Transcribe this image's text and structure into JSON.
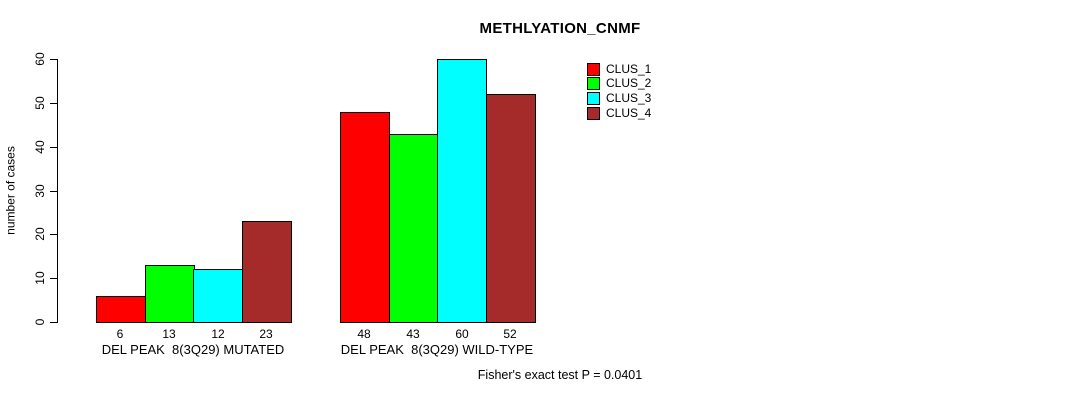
{
  "chart_data": {
    "type": "bar",
    "title": "METHLYATION_CNMF",
    "xlabel": "",
    "ylabel": "number of cases",
    "ylim": [
      0,
      60
    ],
    "yticks": [
      0,
      10,
      20,
      30,
      40,
      50,
      60
    ],
    "grid": false,
    "legend_position": "top-right-inside",
    "categories": [
      "DEL PEAK  8(3Q29) MUTATED",
      "DEL PEAK  8(3Q29) WILD-TYPE"
    ],
    "series": [
      {
        "name": "CLUS_1",
        "color": "#ff0000",
        "values": [
          6,
          48
        ]
      },
      {
        "name": "CLUS_2",
        "color": "#00ff00",
        "values": [
          13,
          43
        ]
      },
      {
        "name": "CLUS_3",
        "color": "#00ffff",
        "values": [
          12,
          60
        ]
      },
      {
        "name": "CLUS_4",
        "color": "#a52a2a",
        "values": [
          23,
          52
        ]
      }
    ],
    "bar_value_labels": [
      [
        6,
        13,
        12,
        23
      ],
      [
        48,
        43,
        60,
        52
      ]
    ],
    "footnote": "Fisher's exact test P = 0.0401",
    "background_color": "#ffffff",
    "axis_color": "#000000",
    "text_color": "#000000"
  }
}
